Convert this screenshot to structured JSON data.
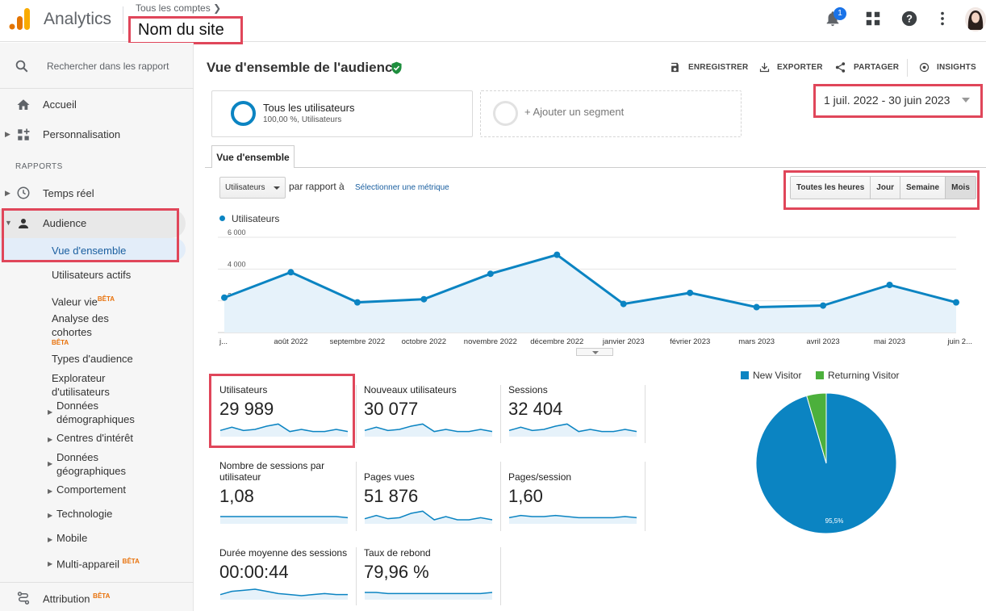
{
  "header": {
    "app_name": "Analytics",
    "breadcrumb": "Tous les comptes",
    "site_name": "Nom du site",
    "notifications_count": "1"
  },
  "sidebar": {
    "search_placeholder": "Rechercher dans les rapport",
    "home": "Accueil",
    "customization": "Personnalisation",
    "reports_section": "RAPPORTS",
    "realtime": "Temps réel",
    "audience": "Audience",
    "audience_items": {
      "overview": "Vue d'ensemble",
      "active_users": "Utilisateurs actifs",
      "lifetime_value": "Valeur vie",
      "cohort_analysis": "Analyse des cohortes",
      "audience_types": "Types d'audience",
      "user_explorer": "Explorateur d'utilisateurs",
      "demographics": "Données démographiques",
      "interests": "Centres d'intérêt",
      "geo": "Données géographiques",
      "behavior": "Comportement",
      "technology": "Technologie",
      "mobile": "Mobile",
      "cross_device": "Multi-appareil"
    },
    "attribution": "Attribution",
    "beta_label": "BÊTA"
  },
  "main": {
    "title": "Vue d'ensemble de l'audience",
    "actions": {
      "save": "ENREGISTRER",
      "export": "EXPORTER",
      "share": "PARTAGER",
      "insights": "INSIGHTS"
    },
    "segment": {
      "title": "Tous les utilisateurs",
      "subtitle": "100,00 %, Utilisateurs",
      "add": "+ Ajouter un segment"
    },
    "date_range": "1 juil. 2022 - 30 juin 2023",
    "tab": "Vue d'ensemble",
    "metric_select": "Utilisateurs",
    "compare_text": "par rapport à",
    "select_metric_link": "Sélectionner une métrique",
    "periods": [
      "Toutes les heures",
      "Jour",
      "Semaine",
      "Mois"
    ],
    "active_period": "Mois",
    "legend_label": "Utilisateurs"
  },
  "chart_data": [
    {
      "type": "area",
      "series": [
        {
          "name": "Utilisateurs",
          "values": [
            2200,
            3800,
            1900,
            2100,
            3700,
            4900,
            1800,
            2500,
            1600,
            1700,
            3000,
            1900
          ]
        }
      ],
      "categories": [
        "j...",
        "août 2022",
        "septembre 2022",
        "octobre 2022",
        "novembre 2022",
        "décembre 2022",
        "janvier 2023",
        "février 2023",
        "mars 2023",
        "avril 2023",
        "mai 2023",
        "juin 2..."
      ],
      "y_ticks": [
        "2 000",
        "4 000",
        "6 000"
      ],
      "ylim": [
        0,
        6000
      ],
      "color": "#0b84c2",
      "grid": true
    },
    {
      "type": "pie",
      "categories": [
        "New Visitor",
        "Returning Visitor"
      ],
      "values": [
        95.5,
        4.5
      ],
      "colors": [
        "#0b84c2",
        "#4cb03c"
      ],
      "data_labels": [
        "95,5%"
      ]
    }
  ],
  "kpis": [
    {
      "label": "Utilisateurs",
      "value": "29 989",
      "trend": [
        5,
        8,
        5,
        6,
        9,
        11,
        4,
        6,
        4,
        4,
        6,
        4
      ]
    },
    {
      "label": "Nouveaux utilisateurs",
      "value": "30 077",
      "trend": [
        5,
        8,
        5,
        6,
        9,
        11,
        4,
        6,
        4,
        4,
        6,
        4
      ]
    },
    {
      "label": "Sessions",
      "value": "32 404",
      "trend": [
        5,
        8,
        5,
        6,
        9,
        11,
        4,
        6,
        4,
        4,
        6,
        4
      ]
    },
    {
      "label": "Nombre de sessions par utilisateur",
      "value": "1,08",
      "trend": [
        6,
        6,
        6,
        6,
        6,
        6,
        6,
        6,
        6,
        6,
        6,
        5
      ]
    },
    {
      "label": "Pages vues",
      "value": "51 876",
      "trend": [
        4,
        7,
        4,
        5,
        9,
        11,
        3,
        6,
        3,
        3,
        5,
        3
      ]
    },
    {
      "label": "Pages/session",
      "value": "1,60",
      "trend": [
        5,
        7,
        6,
        6,
        7,
        6,
        5,
        5,
        5,
        5,
        6,
        5
      ]
    },
    {
      "label": "Durée moyenne des sessions",
      "value": "00:00:44",
      "trend": [
        4,
        7,
        8,
        9,
        7,
        5,
        4,
        3,
        4,
        5,
        4,
        4
      ]
    },
    {
      "label": "Taux de rebond",
      "value": "79,96 %",
      "trend": [
        6,
        6,
        5,
        5,
        5,
        5,
        5,
        5,
        5,
        5,
        5,
        6
      ]
    }
  ]
}
